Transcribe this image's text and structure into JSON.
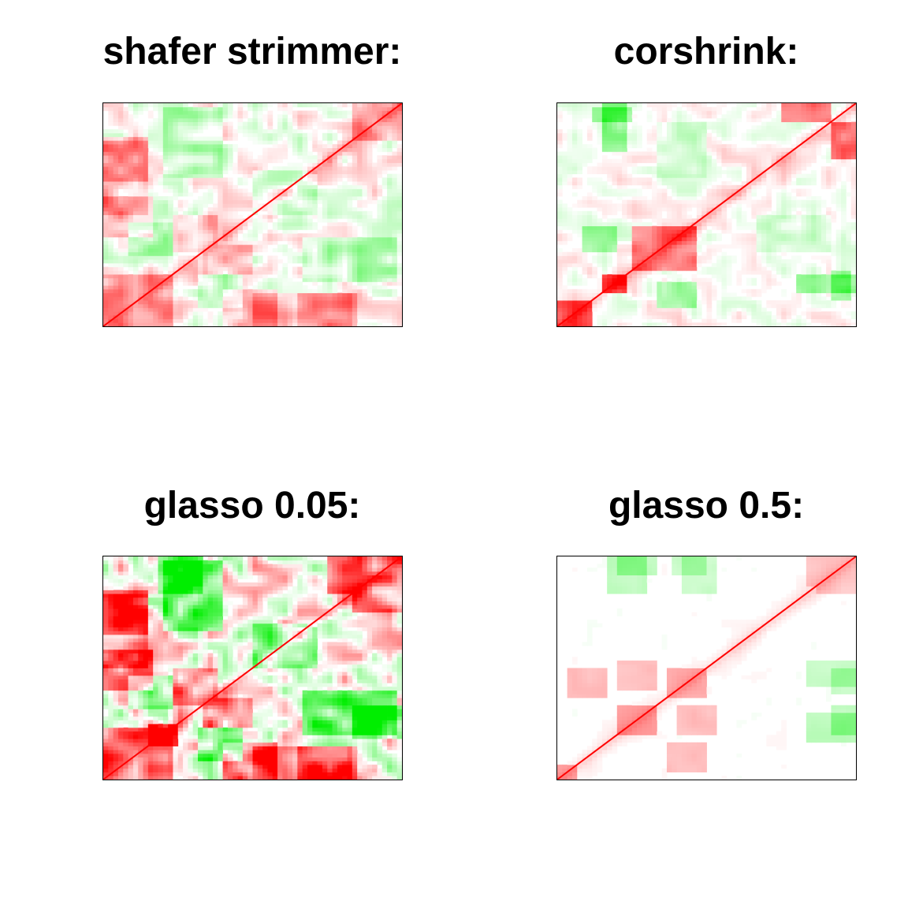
{
  "chart_data": [
    {
      "type": "heatmap",
      "title": "shafer strimmer:",
      "variables": 120,
      "diagonal_value": 1,
      "value_range": [
        -1,
        1
      ],
      "colors": {
        "positive": "#ff0000",
        "negative": "#00ee00",
        "zero": "#ffffff"
      },
      "intensity": 0.3,
      "blocks": [
        {
          "rows": [
            0,
            28
          ],
          "cols": [
            0,
            28
          ],
          "value": 0.35
        },
        {
          "rows": [
            10,
            28
          ],
          "cols": [
            38,
            56
          ],
          "value": -0.25
        },
        {
          "rows": [
            48,
            70
          ],
          "cols": [
            0,
            20
          ],
          "value": 0.3
        },
        {
          "rows": [
            78,
            102
          ],
          "cols": [
            0,
            18
          ],
          "value": 0.3
        },
        {
          "rows": [
            24,
            48
          ],
          "cols": [
            80,
            118
          ],
          "value": -0.25
        },
        {
          "rows": [
            60,
            82
          ],
          "cols": [
            60,
            85
          ],
          "value": -0.2
        },
        {
          "rows": [
            0,
            18
          ],
          "cols": [
            60,
            100
          ],
          "value": 0.2
        },
        {
          "rows": [
            28,
            45
          ],
          "cols": [
            40,
            60
          ],
          "value": 0.25
        },
        {
          "rows": [
            100,
            120
          ],
          "cols": [
            100,
            120
          ],
          "value": 0.3
        }
      ]
    },
    {
      "type": "heatmap",
      "title": "corshrink:",
      "variables": 120,
      "diagonal_value": 1,
      "value_range": [
        -1,
        1
      ],
      "colors": {
        "positive": "#ff0000",
        "negative": "#00ee00",
        "zero": "#ffffff"
      },
      "intensity": 0.2,
      "blocks": [
        {
          "rows": [
            0,
            14
          ],
          "cols": [
            0,
            14
          ],
          "value": 0.65
        },
        {
          "rows": [
            18,
            28
          ],
          "cols": [
            18,
            28
          ],
          "value": 0.75
        },
        {
          "rows": [
            30,
            55
          ],
          "cols": [
            30,
            55
          ],
          "value": 0.5
        },
        {
          "rows": [
            10,
            24
          ],
          "cols": [
            40,
            55
          ],
          "value": -0.35
        },
        {
          "rows": [
            90,
            110
          ],
          "cols": [
            110,
            120
          ],
          "value": 0.55
        },
        {
          "rows": [
            14,
            30
          ],
          "cols": [
            110,
            118
          ],
          "value": -0.35
        },
        {
          "rows": [
            95,
            120
          ],
          "cols": [
            18,
            28
          ],
          "value": -0.4
        },
        {
          "rows": [
            40,
            60
          ],
          "cols": [
            80,
            110
          ],
          "value": -0.15
        }
      ]
    },
    {
      "type": "heatmap",
      "title": "glasso 0.05:",
      "variables": 120,
      "diagonal_value": 1,
      "value_range": [
        -1,
        1
      ],
      "colors": {
        "positive": "#ff0000",
        "negative": "#00ee00",
        "zero": "#ffffff"
      },
      "intensity": 0.55,
      "blocks": [
        {
          "rows": [
            0,
            28
          ],
          "cols": [
            0,
            28
          ],
          "value": 0.6
        },
        {
          "rows": [
            18,
            30
          ],
          "cols": [
            18,
            30
          ],
          "value": 0.8
        },
        {
          "rows": [
            10,
            28
          ],
          "cols": [
            38,
            56
          ],
          "value": -0.5
        },
        {
          "rows": [
            48,
            70
          ],
          "cols": [
            0,
            20
          ],
          "value": 0.55
        },
        {
          "rows": [
            78,
            102
          ],
          "cols": [
            0,
            18
          ],
          "value": 0.5
        },
        {
          "rows": [
            24,
            48
          ],
          "cols": [
            80,
            118
          ],
          "value": -0.55
        },
        {
          "rows": [
            60,
            82
          ],
          "cols": [
            60,
            85
          ],
          "value": -0.4
        },
        {
          "rows": [
            0,
            18
          ],
          "cols": [
            60,
            100
          ],
          "value": 0.4
        },
        {
          "rows": [
            28,
            45
          ],
          "cols": [
            40,
            60
          ],
          "value": 0.45
        },
        {
          "rows": [
            100,
            120
          ],
          "cols": [
            22,
            40
          ],
          "value": -0.5
        },
        {
          "rows": [
            100,
            120
          ],
          "cols": [
            90,
            120
          ],
          "value": 0.55
        }
      ]
    },
    {
      "type": "heatmap",
      "title": "glasso 0.5:",
      "variables": 120,
      "diagonal_value": 1,
      "value_range": [
        -1,
        1
      ],
      "colors": {
        "positive": "#ff0000",
        "negative": "#00ee00",
        "zero": "#ffffff"
      },
      "intensity": 0.04,
      "blocks": [
        {
          "rows": [
            24,
            40
          ],
          "cols": [
            24,
            40
          ],
          "value": 0.35
        },
        {
          "rows": [
            44,
            60
          ],
          "cols": [
            44,
            60
          ],
          "value": 0.3
        },
        {
          "rows": [
            0,
            8
          ],
          "cols": [
            0,
            8
          ],
          "value": 0.35
        },
        {
          "rows": [
            24,
            40
          ],
          "cols": [
            48,
            64
          ],
          "value": 0.25
        },
        {
          "rows": [
            44,
            60
          ],
          "cols": [
            4,
            20
          ],
          "value": 0.25
        },
        {
          "rows": [
            100,
            120
          ],
          "cols": [
            20,
            36
          ],
          "value": -0.25
        },
        {
          "rows": [
            100,
            120
          ],
          "cols": [
            50,
            64
          ],
          "value": -0.2
        },
        {
          "rows": [
            24,
            40
          ],
          "cols": [
            110,
            120
          ],
          "value": -0.25
        },
        {
          "rows": [
            46,
            60
          ],
          "cols": [
            110,
            120
          ],
          "value": -0.2
        },
        {
          "rows": [
            100,
            120
          ],
          "cols": [
            104,
            120
          ],
          "value": 0.2
        }
      ]
    }
  ]
}
